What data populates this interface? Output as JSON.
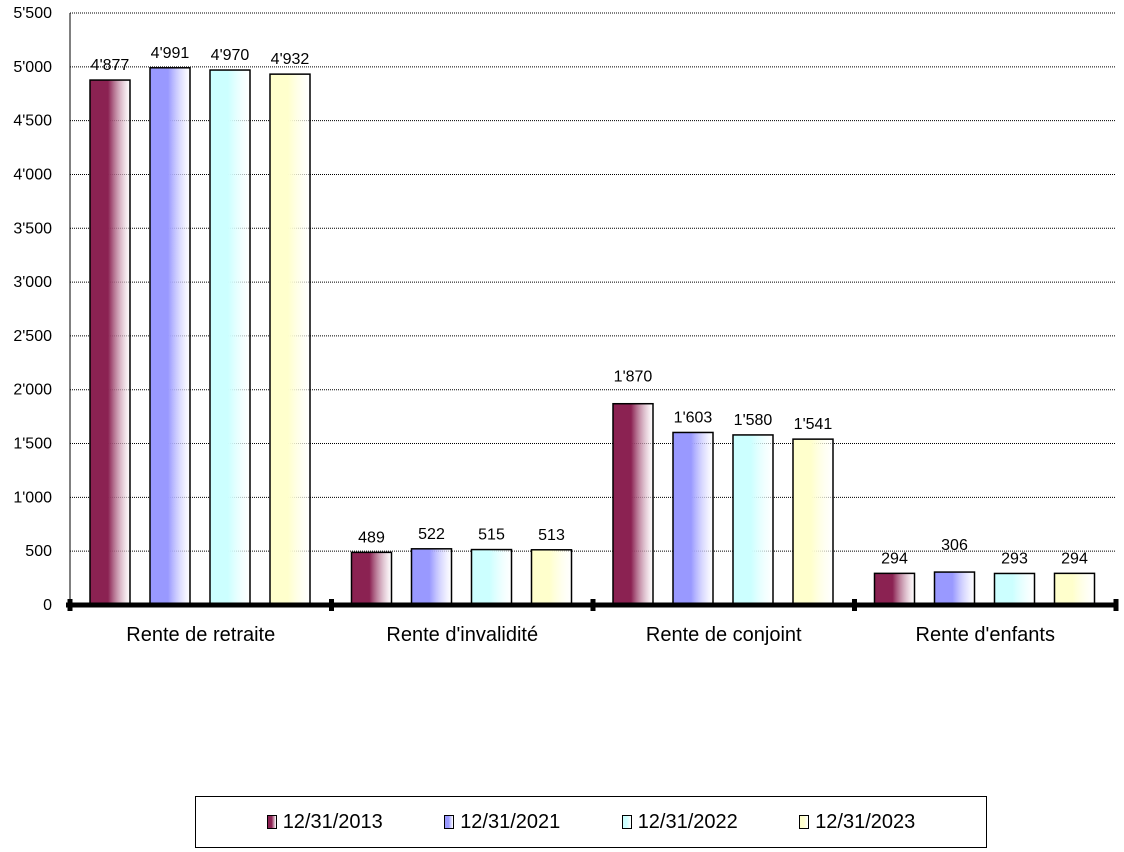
{
  "chart_data": {
    "type": "bar",
    "categories": [
      "Rente de retraite",
      "Rente d'invalidité",
      "Rente de conjoint",
      "Rente d'enfants"
    ],
    "series": [
      {
        "name": "12/31/2013",
        "values": [
          4877,
          489,
          1870,
          294
        ],
        "labels": [
          "4'877",
          "489",
          "1'870",
          "294"
        ],
        "color": "#8B2252"
      },
      {
        "name": "12/31/2021",
        "values": [
          4991,
          522,
          1603,
          306
        ],
        "labels": [
          "4'991",
          "522",
          "1'603",
          "306"
        ],
        "color": "#9999FF"
      },
      {
        "name": "12/31/2022",
        "values": [
          4970,
          515,
          1580,
          293
        ],
        "labels": [
          "4'970",
          "515",
          "1'580",
          "293"
        ],
        "color": "#CCFFFF"
      },
      {
        "name": "12/31/2023",
        "values": [
          4932,
          513,
          1541,
          294
        ],
        "labels": [
          "4'932",
          "513",
          "1'541",
          "294"
        ],
        "color": "#FFFFCC"
      }
    ],
    "yticks": [
      0,
      500,
      1000,
      1500,
      2000,
      2500,
      3000,
      3500,
      4000,
      4500,
      5000,
      5500
    ],
    "ytick_labels": [
      "0",
      "500",
      "1'000",
      "1'500",
      "2'000",
      "2'500",
      "3'000",
      "3'500",
      "4'000",
      "4'500",
      "5'000",
      "5'500"
    ],
    "ylim": [
      0,
      5500
    ],
    "grid": true,
    "legend_position": "bottom",
    "title": "",
    "xlabel": "",
    "ylabel": ""
  }
}
